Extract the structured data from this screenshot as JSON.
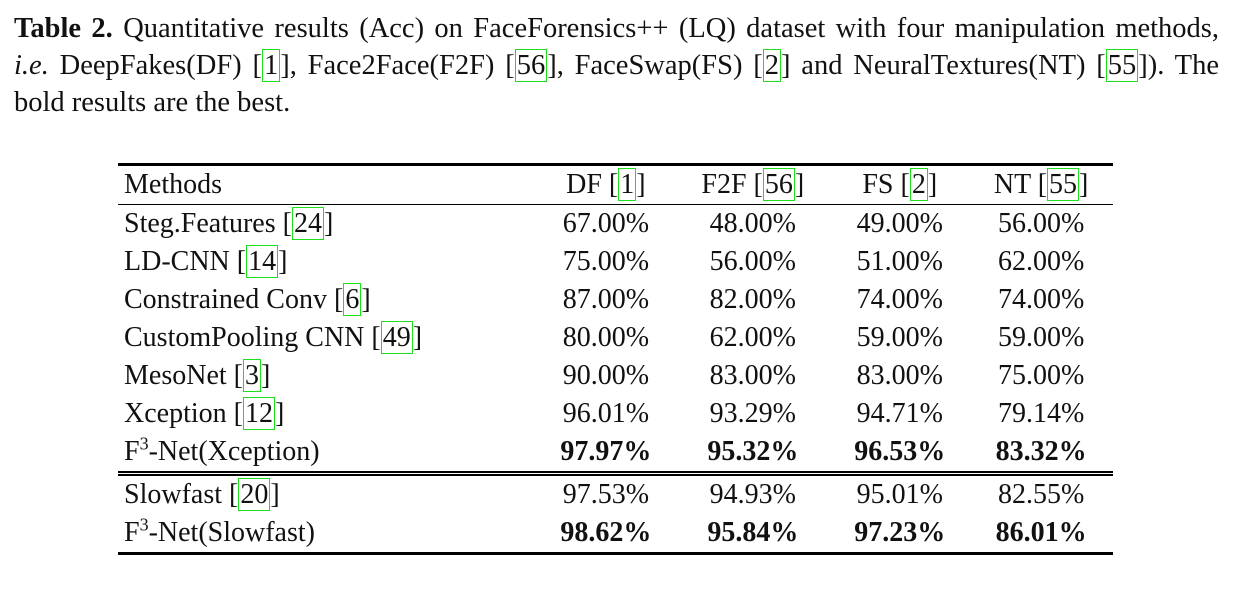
{
  "caption": {
    "label": "Table 2.",
    "runs": [
      "Quantitative results (Acc) on FaceForensics++ (LQ) dataset with four manipulation methods, ",
      {
        "em": "i.e."
      },
      " DeepFakes(DF) [",
      {
        "cite": "1"
      },
      "], Face2Face(F2F) [",
      {
        "cite": "56"
      },
      "], FaceSwap(FS) [",
      {
        "cite": "2"
      },
      "] and NeuralTextures(NT) [",
      {
        "cite": "55"
      },
      "]). The bold results are the best."
    ]
  },
  "table": {
    "header": [
      [
        "Methods"
      ],
      [
        "DF [",
        {
          "cite": "1"
        },
        "]"
      ],
      [
        "F2F [",
        {
          "cite": "56"
        },
        "]"
      ],
      [
        "FS [",
        {
          "cite": "2"
        },
        "]"
      ],
      [
        "NT [",
        {
          "cite": "55"
        },
        "]"
      ]
    ],
    "groups": [
      [
        {
          "method": [
            "Steg.Features [",
            {
              "cite": "24"
            },
            "]"
          ],
          "values": [
            "67.00%",
            "48.00%",
            "49.00%",
            "56.00%"
          ]
        },
        {
          "method": [
            "LD-CNN [",
            {
              "cite": "14"
            },
            "]"
          ],
          "values": [
            "75.00%",
            "56.00%",
            "51.00%",
            "62.00%"
          ]
        },
        {
          "method": [
            "Constrained Conv [",
            {
              "cite": "6"
            },
            "]"
          ],
          "values": [
            "87.00%",
            "82.00%",
            "74.00%",
            "74.00%"
          ]
        },
        {
          "method": [
            "CustomPooling CNN [",
            {
              "cite": "49"
            },
            "]"
          ],
          "values": [
            "80.00%",
            "62.00%",
            "59.00%",
            "59.00%"
          ]
        },
        {
          "method": [
            "MesoNet [",
            {
              "cite": "3"
            },
            "]"
          ],
          "values": [
            "90.00%",
            "83.00%",
            "83.00%",
            "75.00%"
          ]
        },
        {
          "method": [
            "Xception [",
            {
              "cite": "12"
            },
            "]"
          ],
          "values": [
            "96.01%",
            "93.29%",
            "94.71%",
            "79.14%"
          ]
        },
        {
          "method": [
            "F",
            {
              "sup": "3"
            },
            "-Net(Xception)"
          ],
          "values": [
            "97.97%",
            "95.32%",
            "96.53%",
            "83.32%"
          ],
          "best": true
        }
      ],
      [
        {
          "method": [
            "Slowfast [",
            {
              "cite": "20"
            },
            "]"
          ],
          "values": [
            "97.53%",
            "94.93%",
            "95.01%",
            "82.55%"
          ]
        },
        {
          "method": [
            "F",
            {
              "sup": "3"
            },
            "-Net(Slowfast)"
          ],
          "values": [
            "98.62%",
            "95.84%",
            "97.23%",
            "86.01%"
          ],
          "best": true
        }
      ]
    ]
  }
}
